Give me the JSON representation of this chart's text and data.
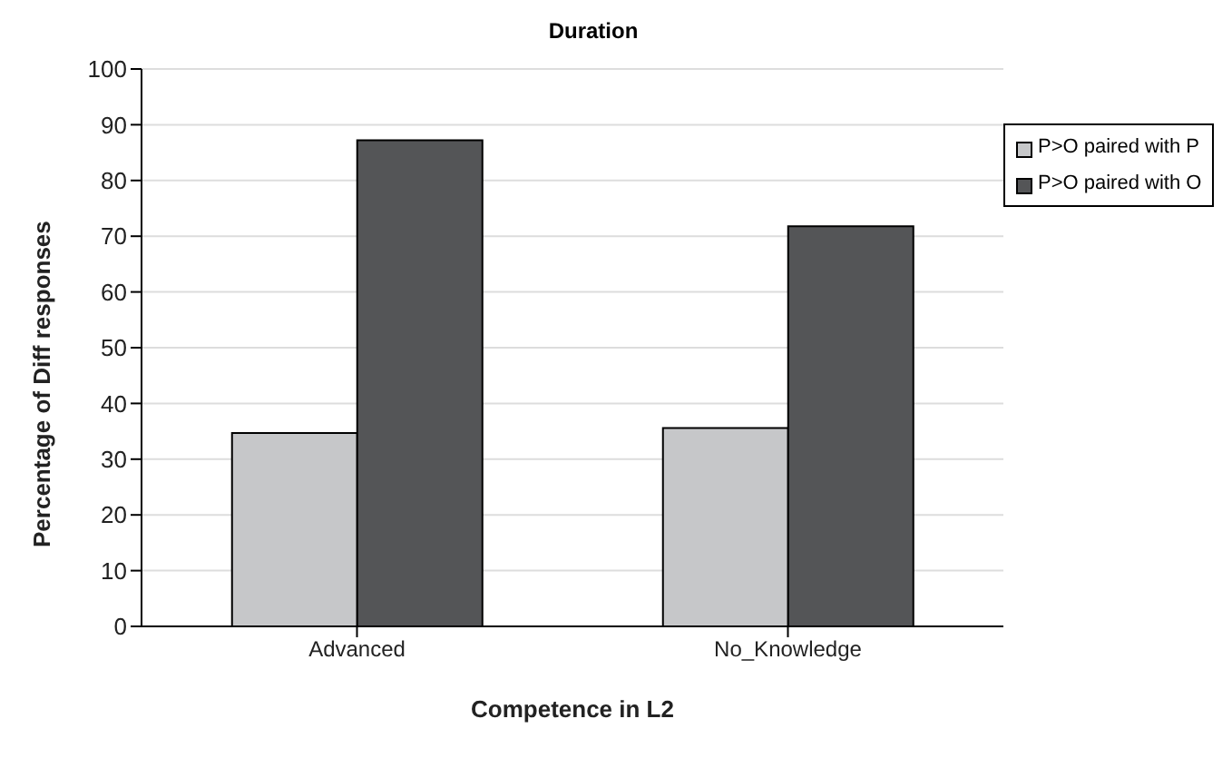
{
  "chart_data": {
    "type": "bar",
    "title": "Duration",
    "xlabel": "Competence in L2",
    "ylabel": "Percentage of Diff responses",
    "categories": [
      "Advanced",
      "No_Knowledge"
    ],
    "series": [
      {
        "name": "P>O paired with P",
        "color": "#c6c7c9",
        "values": [
          34.7,
          35.6
        ]
      },
      {
        "name": "P>O paired with O",
        "color": "#545557",
        "values": [
          87.2,
          71.8
        ]
      }
    ],
    "ylim": [
      0,
      100
    ],
    "yticks": [
      0,
      10,
      20,
      30,
      40,
      50,
      60,
      70,
      80,
      90,
      100
    ],
    "grid": "y",
    "legend": "right"
  }
}
